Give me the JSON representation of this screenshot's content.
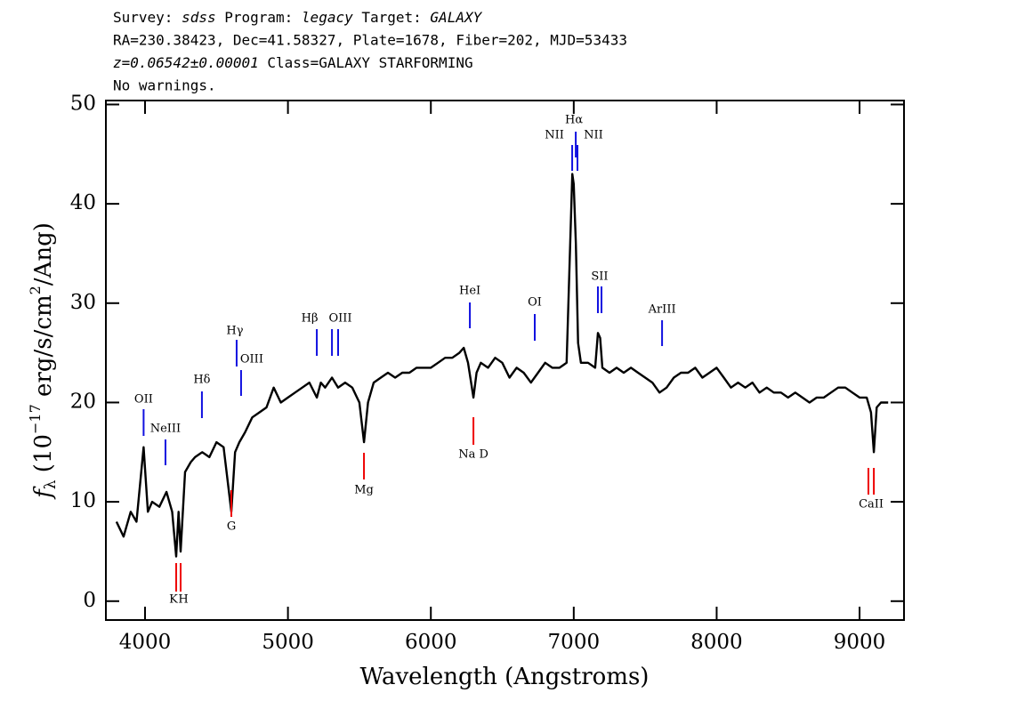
{
  "header": [
    [
      "Survey: ",
      "sdss",
      " Program: ",
      "legacy",
      " Target: ",
      "GALAXY"
    ],
    [
      "RA=230.38423, Dec=41.58327, Plate=1678, Fiber=202, MJD=53433"
    ],
    [
      "z=0.06542±0.00001",
      " Class=GALAXY STARFORMING"
    ],
    [
      "No warnings."
    ]
  ],
  "chart_data": {
    "type": "line",
    "x_label": "Wavelength (Angstroms)",
    "y_label": [
      "f",
      "λ",
      " (10",
      "−17",
      " erg/s/cm",
      "2",
      "/Ang)"
    ],
    "xlim": [
      3726,
      9311
    ],
    "ylim": [
      -1.9,
      50.4
    ],
    "xticks": [
      4000,
      5000,
      6000,
      7000,
      8000,
      9000
    ],
    "yticks": [
      0,
      10,
      20,
      30,
      40,
      50
    ],
    "x": [
      3800,
      3850,
      3900,
      3940,
      3990,
      4020,
      4050,
      4100,
      4150,
      4190,
      4218,
      4235,
      4249,
      4280,
      4320,
      4350,
      4400,
      4450,
      4500,
      4550,
      4604,
      4630,
      4660,
      4700,
      4750,
      4800,
      4850,
      4900,
      4950,
      5000,
      5050,
      5100,
      5150,
      5202,
      5230,
      5260,
      5308,
      5351,
      5400,
      5450,
      5500,
      5532,
      5560,
      5600,
      5650,
      5700,
      5750,
      5800,
      5850,
      5900,
      5950,
      6000,
      6050,
      6100,
      6150,
      6200,
      6230,
      6260,
      6298,
      6320,
      6350,
      6400,
      6450,
      6500,
      6550,
      6600,
      6650,
      6700,
      6750,
      6800,
      6850,
      6900,
      6950,
      6990,
      7000,
      7015,
      7030,
      7050,
      7100,
      7150,
      7169,
      7185,
      7200,
      7250,
      7300,
      7350,
      7400,
      7450,
      7500,
      7550,
      7600,
      7650,
      7700,
      7750,
      7800,
      7850,
      7900,
      7950,
      8000,
      8050,
      8100,
      8150,
      8200,
      8250,
      8300,
      8350,
      8400,
      8450,
      8500,
      8550,
      8600,
      8650,
      8700,
      8750,
      8800,
      8850,
      8900,
      8950,
      9000,
      9050,
      9080,
      9100,
      9120,
      9150,
      9200
    ],
    "series": [
      {
        "color": "#000000",
        "values": [
          8,
          6.5,
          9,
          8,
          15.5,
          9,
          10,
          9.5,
          11,
          9,
          4.5,
          9,
          5,
          13,
          14,
          14.5,
          15,
          14.5,
          16,
          15.5,
          9,
          15,
          16,
          17,
          18.5,
          19,
          19.5,
          21.5,
          20,
          20.5,
          21,
          21.5,
          22,
          20.5,
          22,
          21.5,
          22.5,
          21.5,
          22,
          21.5,
          20,
          16,
          20,
          22,
          22.5,
          23,
          22.5,
          23,
          23,
          23.5,
          23.5,
          23.5,
          24,
          24.5,
          24.5,
          25,
          25.5,
          24,
          20.5,
          23,
          24,
          23.5,
          24.5,
          24,
          22.5,
          23.5,
          23,
          22,
          23,
          24,
          23.5,
          23.5,
          24,
          43,
          42,
          36,
          26,
          24,
          24,
          23.5,
          27,
          26.5,
          23.5,
          23,
          23.5,
          23,
          23.5,
          23,
          22.5,
          22,
          21,
          21.5,
          22.5,
          23,
          23,
          23.5,
          22.5,
          23,
          23.5,
          22.5,
          21.5,
          22,
          21.5,
          22,
          21,
          21.5,
          21,
          21,
          20.5,
          21,
          20.5,
          20,
          20.5,
          20.5,
          21,
          21.5,
          21.5,
          21,
          20.5,
          20.5,
          19,
          15,
          19.5,
          20,
          20
        ]
      }
    ],
    "features": [
      {
        "label": "OII",
        "wavelengths": [
          3990
        ],
        "color": "#1010e0"
      },
      {
        "label": "NeIII",
        "wavelengths": [
          4143
        ],
        "color": "#1010e0"
      },
      {
        "label": "Hδ",
        "wavelengths": [
          4398
        ],
        "color": "#1010e0"
      },
      {
        "label": "Hγ",
        "wavelengths": [
          4641
        ],
        "color": "#1010e0"
      },
      {
        "label": "OIII",
        "wavelengths": [
          4672
        ],
        "color": "#1010e0"
      },
      {
        "label": "Hβ",
        "wavelengths": [
          5202
        ],
        "color": "#1010e0"
      },
      {
        "label": "OIII",
        "wavelengths": [
          5308,
          5351
        ],
        "color": "#1010e0"
      },
      {
        "label": "HeI",
        "wavelengths": [
          6273
        ],
        "color": "#1010e0"
      },
      {
        "label": "OI",
        "wavelengths": [
          6727
        ],
        "color": "#1010e0"
      },
      {
        "label": "NII",
        "wavelengths": [
          6989
        ],
        "color": "#1010e0"
      },
      {
        "label": "Hα",
        "wavelengths": [
          7014
        ],
        "color": "#1010e0"
      },
      {
        "label": "NII",
        "wavelengths": [
          7026
        ],
        "color": "#1010e0"
      },
      {
        "label": "SII",
        "wavelengths": [
          7169,
          7194
        ],
        "color": "#1010e0"
      },
      {
        "label": "ArIII",
        "wavelengths": [
          7618
        ],
        "color": "#1010e0"
      },
      {
        "label": "K",
        "wavelengths": [
          4218
        ],
        "color": "#ee0000"
      },
      {
        "label": "H",
        "wavelengths": [
          4249
        ],
        "color": "#ee0000"
      },
      {
        "label": "G",
        "wavelengths": [
          4604
        ],
        "color": "#ee0000"
      },
      {
        "label": "Mg",
        "wavelengths": [
          5532
        ],
        "color": "#ee0000"
      },
      {
        "label": "Na  D",
        "wavelengths": [
          6298
        ],
        "color": "#ee0000"
      },
      {
        "label": "CaII",
        "wavelengths": [
          9062,
          9100
        ],
        "color": "#ee0000"
      }
    ]
  }
}
